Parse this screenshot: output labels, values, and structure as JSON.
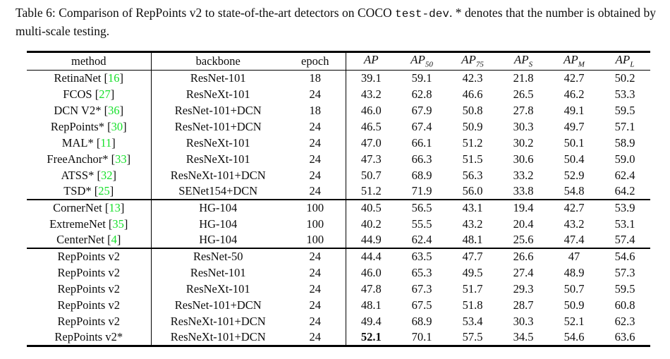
{
  "caption": {
    "text_before_code": "Table 6: Comparison of RepPoints v2 to state-of-the-art detectors on COCO ",
    "code": "test-dev",
    "text_after_code": ". * denotes that the number is obtained by multi-scale testing."
  },
  "colors": {
    "citation_green": "#17e02b",
    "text": "#0d0d0d",
    "rule": "#000000"
  },
  "table": {
    "headers": {
      "method": "method",
      "backbone": "backbone",
      "epoch": "epoch",
      "metrics": [
        {
          "base": "AP",
          "sub": ""
        },
        {
          "base": "AP",
          "sub": "50"
        },
        {
          "base": "AP",
          "sub": "75"
        },
        {
          "base": "AP",
          "sub": "S"
        },
        {
          "base": "AP",
          "sub": "M"
        },
        {
          "base": "AP",
          "sub": "L"
        }
      ]
    },
    "groups": [
      {
        "rows": [
          {
            "method": "RetinaNet",
            "cite": "16",
            "backbone": "ResNet-101",
            "epoch": "18",
            "values": [
              "39.1",
              "59.1",
              "42.3",
              "21.8",
              "42.7",
              "50.2"
            ]
          },
          {
            "method": "FCOS",
            "cite": "27",
            "backbone": "ResNeXt-101",
            "epoch": "24",
            "values": [
              "43.2",
              "62.8",
              "46.6",
              "26.5",
              "46.2",
              "53.3"
            ]
          },
          {
            "method": "DCN V2*",
            "cite": "36",
            "backbone": "ResNet-101+DCN",
            "epoch": "18",
            "values": [
              "46.0",
              "67.9",
              "50.8",
              "27.8",
              "49.1",
              "59.5"
            ]
          },
          {
            "method": "RepPoints*",
            "cite": "30",
            "backbone": "ResNet-101+DCN",
            "epoch": "24",
            "values": [
              "46.5",
              "67.4",
              "50.9",
              "30.3",
              "49.7",
              "57.1"
            ]
          },
          {
            "method": "MAL*",
            "cite": "11",
            "backbone": "ResNeXt-101",
            "epoch": "24",
            "values": [
              "47.0",
              "66.1",
              "51.2",
              "30.2",
              "50.1",
              "58.9"
            ]
          },
          {
            "method": "FreeAnchor*",
            "cite": "33",
            "backbone": "ResNeXt-101",
            "epoch": "24",
            "values": [
              "47.3",
              "66.3",
              "51.5",
              "30.6",
              "50.4",
              "59.0"
            ]
          },
          {
            "method": "ATSS*",
            "cite": "32",
            "backbone": "ResNeXt-101+DCN",
            "epoch": "24",
            "values": [
              "50.7",
              "68.9",
              "56.3",
              "33.2",
              "52.9",
              "62.4"
            ]
          },
          {
            "method": "TSD*",
            "cite": "25",
            "backbone": "SENet154+DCN",
            "epoch": "24",
            "values": [
              "51.2",
              "71.9",
              "56.0",
              "33.8",
              "54.8",
              "64.2"
            ]
          }
        ]
      },
      {
        "rows": [
          {
            "method": "CornerNet",
            "cite": "13",
            "backbone": "HG-104",
            "epoch": "100",
            "values": [
              "40.5",
              "56.5",
              "43.1",
              "19.4",
              "42.7",
              "53.9"
            ]
          },
          {
            "method": "ExtremeNet",
            "cite": "35",
            "backbone": "HG-104",
            "epoch": "100",
            "values": [
              "40.2",
              "55.5",
              "43.2",
              "20.4",
              "43.2",
              "53.1"
            ]
          },
          {
            "method": "CenterNet",
            "cite": "4",
            "backbone": "HG-104",
            "epoch": "100",
            "values": [
              "44.9",
              "62.4",
              "48.1",
              "25.6",
              "47.4",
              "57.4"
            ]
          }
        ]
      },
      {
        "rows": [
          {
            "method": "RepPoints v2",
            "backbone": "ResNet-50",
            "epoch": "24",
            "values": [
              "44.4",
              "63.5",
              "47.7",
              "26.6",
              "47",
              "54.6"
            ]
          },
          {
            "method": "RepPoints v2",
            "backbone": "ResNet-101",
            "epoch": "24",
            "values": [
              "46.0",
              "65.3",
              "49.5",
              "27.4",
              "48.9",
              "57.3"
            ]
          },
          {
            "method": "RepPoints v2",
            "backbone": "ResNeXt-101",
            "epoch": "24",
            "values": [
              "47.8",
              "67.3",
              "51.7",
              "29.3",
              "50.7",
              "59.5"
            ]
          },
          {
            "method": "RepPoints v2",
            "backbone": "ResNet-101+DCN",
            "epoch": "24",
            "values": [
              "48.1",
              "67.5",
              "51.8",
              "28.7",
              "50.9",
              "60.8"
            ]
          },
          {
            "method": "RepPoints v2",
            "backbone": "ResNeXt-101+DCN",
            "epoch": "24",
            "values": [
              "49.4",
              "68.9",
              "53.4",
              "30.3",
              "52.1",
              "62.3"
            ]
          },
          {
            "method": "RepPoints v2*",
            "backbone": "ResNeXt-101+DCN",
            "epoch": "24",
            "values": [
              "52.1",
              "70.1",
              "57.5",
              "34.5",
              "54.6",
              "63.6"
            ],
            "bold_value_index": 0
          }
        ]
      }
    ]
  }
}
